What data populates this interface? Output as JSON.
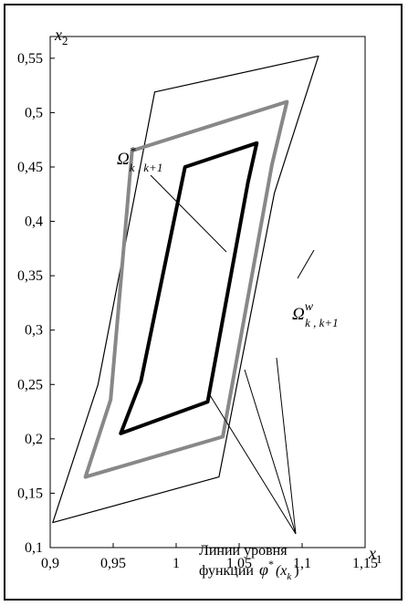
{
  "figure": {
    "axis_x_label": {
      "base": "x",
      "sub": "1"
    },
    "axis_y_label": {
      "base": "x",
      "sub": "2"
    },
    "x_ticks": [
      "0,9",
      "0,95",
      "1",
      "1,05",
      "1,1",
      "1,15"
    ],
    "y_ticks": [
      "0,1",
      "0,15",
      "0,2",
      "0,25",
      "0,3",
      "0,35",
      "0,4",
      "0,45",
      "0,5",
      "0,55"
    ],
    "xlim": [
      0.9,
      1.15
    ],
    "ylim": [
      0.1,
      0.57
    ],
    "omega_star": {
      "base": "Ω",
      "sup": "*",
      "sub": "k , k+1"
    },
    "omega_w": {
      "base": "Ω",
      "sup": "w",
      "sub": "k , k+1"
    },
    "level_lines_line1": "Линии уровня",
    "level_lines_line2_word": "функции",
    "level_lines_line2_func": "φ",
    "level_lines_line2_sup": "*",
    "level_lines_line2_arg": "(x",
    "level_lines_line2_argsub": "k",
    "level_lines_line2_close": ")",
    "regions": {
      "outer": [
        [
          0.902,
          0.123
        ],
        [
          0.938,
          0.25
        ],
        [
          0.983,
          0.519
        ],
        [
          1.113,
          0.552
        ],
        [
          1.078,
          0.426
        ],
        [
          1.034,
          0.165
        ]
      ],
      "middle": [
        [
          0.928,
          0.165
        ],
        [
          0.948,
          0.236
        ],
        [
          0.965,
          0.465
        ],
        [
          1.088,
          0.51
        ],
        [
          1.076,
          0.452
        ],
        [
          1.037,
          0.202
        ]
      ],
      "inner": [
        [
          0.956,
          0.205
        ],
        [
          0.972,
          0.253
        ],
        [
          1.007,
          0.45
        ],
        [
          1.064,
          0.472
        ],
        [
          1.057,
          0.436
        ],
        [
          1.025,
          0.234
        ]
      ]
    },
    "colors": {
      "outer": "#000000",
      "middle": "#888888",
      "inner": "#000000"
    }
  }
}
